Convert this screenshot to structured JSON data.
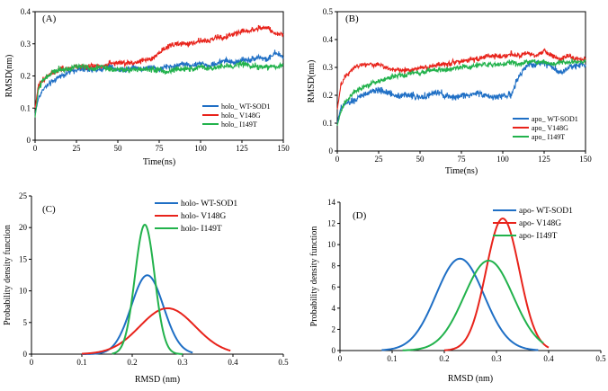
{
  "chart_data": [
    {
      "id": "A",
      "type": "line",
      "panel_label": "(A)",
      "xlabel": "Time(ns)",
      "ylabel": "RMSD(nm)",
      "xlim": [
        0,
        150
      ],
      "ylim": [
        0,
        0.4
      ],
      "xticks": [
        0,
        25,
        50,
        75,
        100,
        125,
        150
      ],
      "yticks": [
        0,
        0.1,
        0.2,
        0.3,
        0.4
      ],
      "xtick_labels": [
        "0",
        "25",
        "50",
        "75",
        "100",
        "125",
        "150"
      ],
      "ytick_labels": [
        "0",
        "0.1",
        "0.2",
        "0.3",
        "0.4"
      ],
      "legend_position": "bottom-right",
      "series": [
        {
          "name": "holo_ WT-SOD1",
          "color": "#1f6fc5",
          "x": [
            0,
            2,
            5,
            10,
            15,
            20,
            25,
            30,
            35,
            40,
            45,
            50,
            55,
            60,
            65,
            70,
            75,
            80,
            85,
            90,
            95,
            100,
            105,
            110,
            115,
            120,
            125,
            130,
            135,
            140,
            145,
            150
          ],
          "y": [
            0.08,
            0.13,
            0.16,
            0.18,
            0.2,
            0.21,
            0.22,
            0.22,
            0.22,
            0.22,
            0.23,
            0.22,
            0.22,
            0.23,
            0.22,
            0.23,
            0.22,
            0.23,
            0.23,
            0.24,
            0.23,
            0.24,
            0.23,
            0.24,
            0.25,
            0.24,
            0.25,
            0.25,
            0.26,
            0.25,
            0.27,
            0.26
          ],
          "noise": 0.015
        },
        {
          "name": "holo_ V148G",
          "color": "#e8231b",
          "x": [
            0,
            2,
            5,
            10,
            15,
            20,
            25,
            30,
            35,
            40,
            45,
            50,
            55,
            60,
            65,
            70,
            75,
            80,
            85,
            90,
            95,
            100,
            105,
            110,
            115,
            120,
            125,
            130,
            135,
            140,
            145,
            150
          ],
          "y": [
            0.1,
            0.17,
            0.19,
            0.21,
            0.22,
            0.22,
            0.23,
            0.23,
            0.23,
            0.23,
            0.24,
            0.24,
            0.24,
            0.24,
            0.25,
            0.25,
            0.27,
            0.29,
            0.3,
            0.3,
            0.3,
            0.31,
            0.31,
            0.32,
            0.32,
            0.33,
            0.34,
            0.34,
            0.35,
            0.35,
            0.33,
            0.33
          ],
          "noise": 0.015
        },
        {
          "name": "holo_ I149T",
          "color": "#22b24c",
          "x": [
            0,
            2,
            5,
            10,
            15,
            20,
            25,
            30,
            35,
            40,
            45,
            50,
            55,
            60,
            65,
            70,
            75,
            80,
            85,
            90,
            95,
            100,
            105,
            110,
            115,
            120,
            125,
            130,
            135,
            140,
            145,
            150
          ],
          "y": [
            0.07,
            0.16,
            0.19,
            0.21,
            0.22,
            0.22,
            0.23,
            0.23,
            0.22,
            0.23,
            0.22,
            0.22,
            0.22,
            0.22,
            0.22,
            0.22,
            0.22,
            0.21,
            0.22,
            0.22,
            0.22,
            0.23,
            0.22,
            0.23,
            0.23,
            0.23,
            0.24,
            0.23,
            0.23,
            0.23,
            0.23,
            0.23
          ],
          "noise": 0.016
        }
      ]
    },
    {
      "id": "B",
      "type": "line",
      "panel_label": "(B)",
      "xlabel": "Time(ns)",
      "ylabel": "RMSD(nm)",
      "xlim": [
        0,
        150
      ],
      "ylim": [
        0,
        0.5
      ],
      "xticks": [
        0,
        25,
        50,
        75,
        100,
        125,
        150
      ],
      "yticks": [
        0,
        0.1,
        0.2,
        0.3,
        0.4,
        0.5
      ],
      "xtick_labels": [
        "0",
        "25",
        "50",
        "75",
        "100",
        "125",
        "150"
      ],
      "ytick_labels": [
        "0",
        "0.1",
        "0.2",
        "0.3",
        "0.4",
        "0.5"
      ],
      "legend_position": "bottom-right",
      "series": [
        {
          "name": "apo_ WT-SOD1",
          "color": "#1f6fc5",
          "x": [
            0,
            2,
            5,
            10,
            15,
            20,
            25,
            30,
            35,
            40,
            45,
            50,
            55,
            60,
            65,
            70,
            75,
            80,
            85,
            90,
            95,
            100,
            105,
            110,
            115,
            120,
            125,
            130,
            135,
            140,
            145,
            150
          ],
          "y": [
            0.1,
            0.15,
            0.17,
            0.18,
            0.2,
            0.21,
            0.22,
            0.21,
            0.2,
            0.2,
            0.2,
            0.19,
            0.2,
            0.21,
            0.2,
            0.19,
            0.2,
            0.2,
            0.21,
            0.2,
            0.19,
            0.2,
            0.2,
            0.27,
            0.31,
            0.31,
            0.32,
            0.3,
            0.28,
            0.3,
            0.31,
            0.31
          ],
          "noise": 0.02
        },
        {
          "name": "apo_ V148G",
          "color": "#e8231b",
          "x": [
            0,
            2,
            5,
            10,
            15,
            20,
            25,
            30,
            35,
            40,
            45,
            50,
            55,
            60,
            65,
            70,
            75,
            80,
            85,
            90,
            95,
            100,
            105,
            110,
            115,
            120,
            125,
            130,
            135,
            140,
            145,
            150
          ],
          "y": [
            0.15,
            0.23,
            0.27,
            0.3,
            0.31,
            0.31,
            0.31,
            0.3,
            0.29,
            0.29,
            0.29,
            0.3,
            0.3,
            0.31,
            0.31,
            0.32,
            0.32,
            0.33,
            0.33,
            0.34,
            0.34,
            0.34,
            0.35,
            0.34,
            0.35,
            0.34,
            0.36,
            0.34,
            0.33,
            0.34,
            0.33,
            0.33
          ],
          "noise": 0.016
        },
        {
          "name": "apo_ I149T",
          "color": "#22b24c",
          "x": [
            0,
            2,
            5,
            10,
            15,
            20,
            25,
            30,
            35,
            40,
            45,
            50,
            55,
            60,
            65,
            70,
            75,
            80,
            85,
            90,
            95,
            100,
            105,
            110,
            115,
            120,
            125,
            130,
            135,
            140,
            145,
            150
          ],
          "y": [
            0.09,
            0.14,
            0.18,
            0.21,
            0.23,
            0.24,
            0.25,
            0.26,
            0.27,
            0.27,
            0.28,
            0.28,
            0.29,
            0.29,
            0.29,
            0.3,
            0.3,
            0.3,
            0.31,
            0.31,
            0.31,
            0.31,
            0.32,
            0.31,
            0.32,
            0.32,
            0.32,
            0.31,
            0.32,
            0.32,
            0.32,
            0.32
          ],
          "noise": 0.016
        }
      ]
    },
    {
      "id": "C",
      "type": "line",
      "panel_label": "(C)",
      "xlabel": "RMSD (nm)",
      "ylabel": "Probability density function",
      "xlim": [
        0,
        0.5
      ],
      "ylim": [
        0,
        25
      ],
      "xticks": [
        0,
        0.1,
        0.2,
        0.3,
        0.4,
        0.5
      ],
      "yticks": [
        0,
        5,
        10,
        15,
        20,
        25
      ],
      "xtick_labels": [
        "0",
        "0.1",
        "0.2",
        "0.3",
        "0.4",
        "0.5"
      ],
      "ytick_labels": [
        "0",
        "5",
        "10",
        "15",
        "20",
        "25"
      ],
      "legend_position": "top-right",
      "series": [
        {
          "name": "holo- WT-SOD1",
          "color": "#1f6fc5",
          "distribution": "normal",
          "mean": 0.23,
          "sd": 0.032,
          "range": [
            0.1,
            0.32
          ]
        },
        {
          "name": "holo- V148G",
          "color": "#e8231b",
          "distribution": "normal",
          "mean": 0.27,
          "sd": 0.055,
          "range": [
            0.1,
            0.395
          ]
        },
        {
          "name": "holo- I149T",
          "color": "#22b24c",
          "distribution": "normal",
          "mean": 0.225,
          "sd": 0.0195,
          "range": [
            0.16,
            0.3
          ]
        }
      ]
    },
    {
      "id": "D",
      "type": "line",
      "panel_label": "(D)",
      "xlabel": "RMSD (nm)",
      "ylabel": "Probability density function",
      "xlim": [
        0,
        0.5
      ],
      "ylim": [
        0,
        14
      ],
      "xticks": [
        0,
        0.1,
        0.2,
        0.3,
        0.4,
        0.5
      ],
      "yticks": [
        0,
        2,
        4,
        6,
        8,
        10,
        12,
        14
      ],
      "xtick_labels": [
        "0",
        "0.1",
        "0.2",
        "0.3",
        "0.4",
        "0.5"
      ],
      "ytick_labels": [
        "0",
        "2",
        "4",
        "6",
        "8",
        "10",
        "12",
        "14"
      ],
      "legend_position": "top-right",
      "series": [
        {
          "name": "apo- WT-SOD1",
          "color": "#1f6fc5",
          "distribution": "normal",
          "mean": 0.23,
          "sd": 0.046,
          "range": [
            0.08,
            0.38
          ]
        },
        {
          "name": "apo- V148G",
          "color": "#e8231b",
          "distribution": "normal",
          "mean": 0.312,
          "sd": 0.032,
          "range": [
            0.2,
            0.4
          ]
        },
        {
          "name": "apo- I149T",
          "color": "#22b24c",
          "distribution": "normal",
          "mean": 0.285,
          "sd": 0.047,
          "range": [
            0.12,
            0.39
          ]
        }
      ]
    }
  ]
}
